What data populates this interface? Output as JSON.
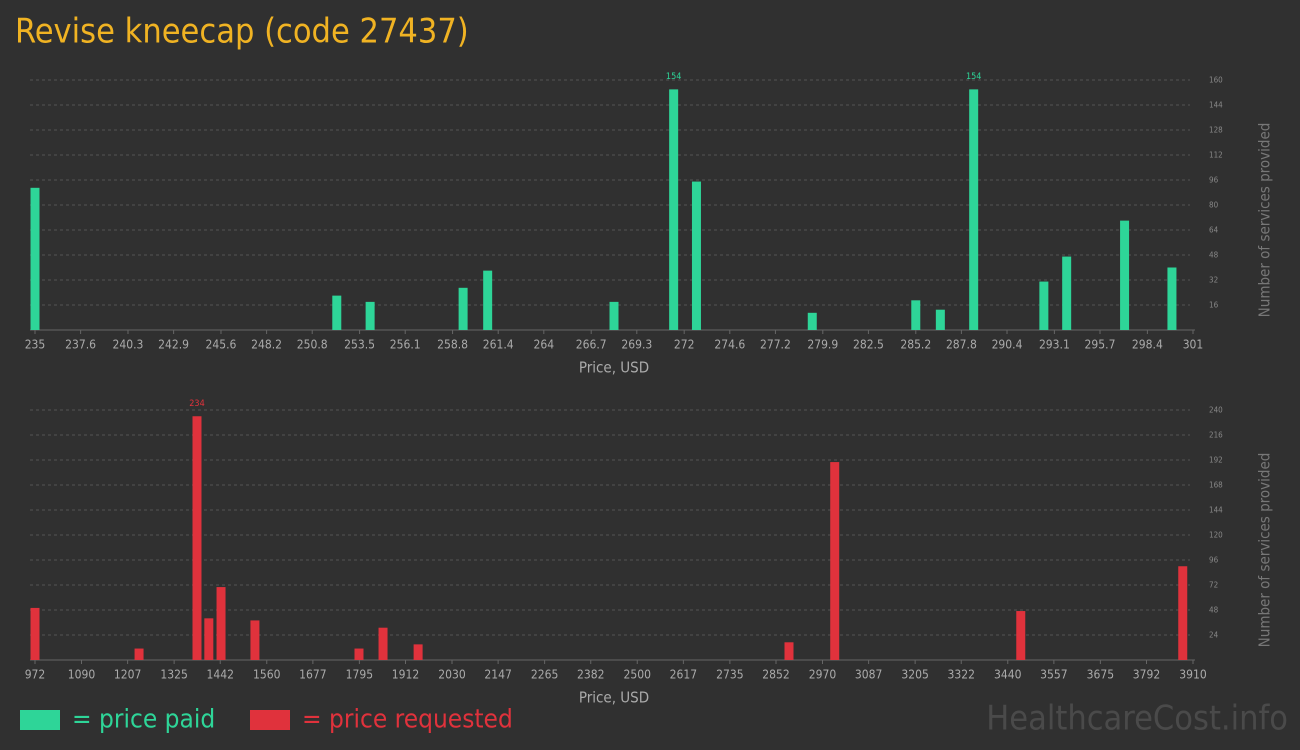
{
  "title": "Revise kneecap (code 27437)",
  "watermark": "HealthcareCost.info",
  "legend": [
    {
      "label": "= price paid",
      "color": "#2ed598"
    },
    {
      "label": "= price requested",
      "color": "#e0323c"
    }
  ],
  "chart_data": [
    {
      "type": "bar",
      "color": "#2ed598",
      "xlabel": "Price, USD",
      "ylabel": "Number of services provided",
      "x": [
        235,
        252.2,
        254.1,
        259.4,
        260.8,
        268.0,
        271.4,
        272.7,
        279.3,
        285.2,
        286.6,
        288.5,
        292.5,
        293.8,
        297.1,
        299.8
      ],
      "values": [
        91,
        22,
        18,
        27,
        38,
        18,
        154,
        95,
        11,
        19,
        13,
        154,
        31,
        47,
        70,
        40
      ],
      "xlim": [
        235,
        301
      ],
      "xticks": [
        235,
        237.6,
        240.3,
        242.9,
        245.6,
        248.2,
        250.8,
        253.5,
        256.1,
        258.8,
        261.4,
        264,
        266.7,
        269.3,
        272,
        274.6,
        277.2,
        279.9,
        282.5,
        285.2,
        287.8,
        290.4,
        293.1,
        295.7,
        298.4,
        301
      ],
      "ylim": [
        0,
        160
      ],
      "yticks": [
        16,
        32,
        48,
        64,
        80,
        96,
        112,
        128,
        144,
        160
      ],
      "grid": true
    },
    {
      "type": "bar",
      "color": "#e0323c",
      "xlabel": "Price, USD",
      "ylabel": "Number of services provided",
      "x": [
        972,
        1236,
        1383,
        1413,
        1444,
        1530,
        1794,
        1855,
        1944,
        2885,
        3001,
        3473,
        3884
      ],
      "values": [
        50,
        11,
        234,
        40,
        70,
        38,
        11,
        31,
        15,
        17,
        190,
        47,
        90
      ],
      "xlim": [
        972,
        3910
      ],
      "xticks": [
        972,
        1090,
        1207,
        1325,
        1442,
        1560,
        1677,
        1795,
        1912,
        2030,
        2147,
        2265,
        2382,
        2500,
        2617,
        2735,
        2852,
        2970,
        3087,
        3205,
        3322,
        3440,
        3557,
        3675,
        3792,
        3910
      ],
      "ylim": [
        0,
        240
      ],
      "yticks": [
        24,
        48,
        72,
        96,
        120,
        144,
        168,
        192,
        216,
        240
      ],
      "grid": true
    }
  ]
}
